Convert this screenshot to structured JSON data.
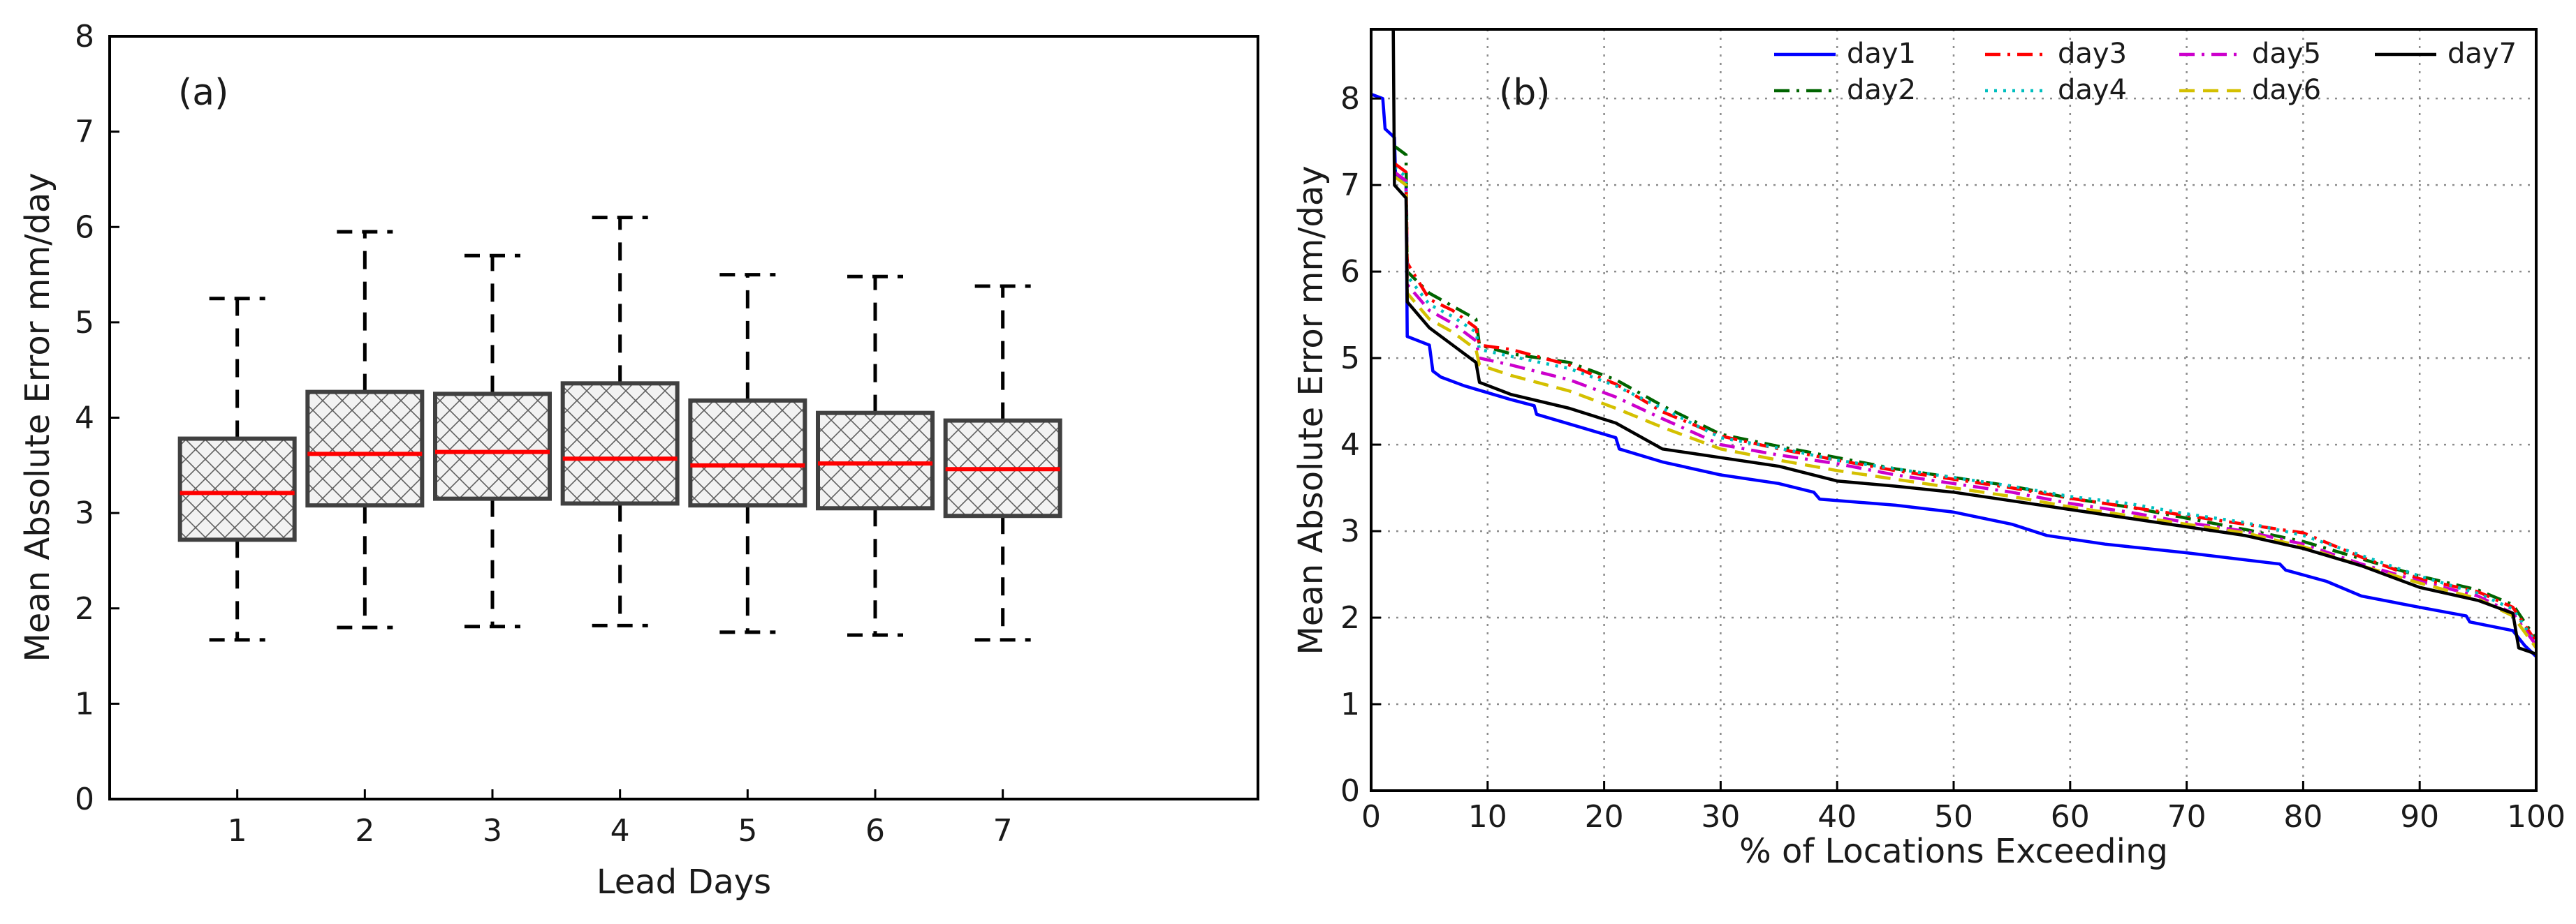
{
  "chart_data": [
    {
      "panel": "(a)",
      "type": "boxplot",
      "xlabel": "Lead Days",
      "ylabel": "Mean Absolute Error mm/day",
      "ylim": [
        0,
        8
      ],
      "xlim": [
        0,
        9
      ],
      "yticks": [
        "0",
        "1",
        "2",
        "3",
        "4",
        "5",
        "6",
        "7",
        "8"
      ],
      "categories": [
        "1",
        "2",
        "3",
        "4",
        "5",
        "6",
        "7"
      ],
      "boxes": [
        {
          "lead": "1",
          "whisker_low": 1.67,
          "q1": 2.72,
          "median": 3.21,
          "q3": 3.78,
          "whisker_high": 5.25
        },
        {
          "lead": "2",
          "whisker_low": 1.8,
          "q1": 3.08,
          "median": 3.62,
          "q3": 4.27,
          "whisker_high": 5.95
        },
        {
          "lead": "3",
          "whisker_low": 1.81,
          "q1": 3.15,
          "median": 3.64,
          "q3": 4.25,
          "whisker_high": 5.7
        },
        {
          "lead": "4",
          "whisker_low": 1.82,
          "q1": 3.1,
          "median": 3.57,
          "q3": 4.36,
          "whisker_high": 6.1
        },
        {
          "lead": "5",
          "whisker_low": 1.75,
          "q1": 3.08,
          "median": 3.5,
          "q3": 4.18,
          "whisker_high": 5.5
        },
        {
          "lead": "6",
          "whisker_low": 1.72,
          "q1": 3.05,
          "median": 3.52,
          "q3": 4.05,
          "whisker_high": 5.48
        },
        {
          "lead": "7",
          "whisker_low": 1.67,
          "q1": 2.97,
          "median": 3.46,
          "q3": 3.97,
          "whisker_high": 5.38
        }
      ],
      "colors": {
        "box_edge": "#404040",
        "median": "#ff0000",
        "whisker": "#000000"
      }
    },
    {
      "panel": "(b)",
      "type": "line",
      "xlabel": "% of Locations Exceeding",
      "ylabel": "Mean Absolute Error mm/day",
      "xlim": [
        0,
        100
      ],
      "ylim": [
        0,
        8.8
      ],
      "xticks": [
        "0",
        "10",
        "20",
        "30",
        "40",
        "50",
        "60",
        "70",
        "80",
        "90",
        "100"
      ],
      "yticks": [
        "0",
        "1",
        "2",
        "3",
        "4",
        "5",
        "6",
        "7",
        "8"
      ],
      "grid": true,
      "legend_position": "top-right",
      "series": [
        {
          "name": "day1",
          "color": "#0000ff",
          "style": "solid",
          "points": [
            [
              0,
              8.05
            ],
            [
              1,
              8.0
            ],
            [
              1.2,
              7.65
            ],
            [
              2,
              7.55
            ],
            [
              2.1,
              7.1
            ],
            [
              3,
              7.0
            ],
            [
              3.1,
              5.25
            ],
            [
              5,
              5.15
            ],
            [
              5.3,
              4.85
            ],
            [
              6,
              4.78
            ],
            [
              8,
              4.68
            ],
            [
              10,
              4.6
            ],
            [
              12,
              4.52
            ],
            [
              14,
              4.45
            ],
            [
              14.2,
              4.35
            ],
            [
              18,
              4.2
            ],
            [
              21,
              4.08
            ],
            [
              21.3,
              3.95
            ],
            [
              25,
              3.8
            ],
            [
              30,
              3.65
            ],
            [
              35,
              3.55
            ],
            [
              38,
              3.45
            ],
            [
              38.5,
              3.37
            ],
            [
              45,
              3.3
            ],
            [
              50,
              3.22
            ],
            [
              55,
              3.08
            ],
            [
              58,
              2.95
            ],
            [
              63,
              2.85
            ],
            [
              70,
              2.75
            ],
            [
              78,
              2.62
            ],
            [
              78.5,
              2.55
            ],
            [
              82,
              2.42
            ],
            [
              85,
              2.25
            ],
            [
              90,
              2.12
            ],
            [
              94,
              2.02
            ],
            [
              94.3,
              1.95
            ],
            [
              98,
              1.85
            ],
            [
              99,
              1.68
            ],
            [
              100,
              1.55
            ]
          ]
        },
        {
          "name": "day2",
          "color": "#006400",
          "style": "dashdot",
          "points": [
            [
              2,
              7.45
            ],
            [
              3,
              7.35
            ],
            [
              3.1,
              6.0
            ],
            [
              5,
              5.75
            ],
            [
              7,
              5.6
            ],
            [
              9,
              5.45
            ],
            [
              9.3,
              5.15
            ],
            [
              12,
              5.05
            ],
            [
              17,
              4.95
            ],
            [
              21,
              4.75
            ],
            [
              25,
              4.45
            ],
            [
              30,
              4.12
            ],
            [
              35,
              3.98
            ],
            [
              40,
              3.85
            ],
            [
              45,
              3.72
            ],
            [
              50,
              3.62
            ],
            [
              55,
              3.52
            ],
            [
              60,
              3.38
            ],
            [
              65,
              3.28
            ],
            [
              70,
              3.15
            ],
            [
              75,
              3.02
            ],
            [
              80,
              2.88
            ],
            [
              85,
              2.68
            ],
            [
              90,
              2.48
            ],
            [
              95,
              2.32
            ],
            [
              98,
              2.15
            ],
            [
              100,
              1.75
            ]
          ]
        },
        {
          "name": "day3",
          "color": "#ff0000",
          "style": "dashdot",
          "points": [
            [
              2,
              7.25
            ],
            [
              3,
              7.15
            ],
            [
              3.1,
              6.1
            ],
            [
              5,
              5.68
            ],
            [
              7,
              5.55
            ],
            [
              9,
              5.35
            ],
            [
              9.3,
              5.15
            ],
            [
              12,
              5.1
            ],
            [
              17,
              4.92
            ],
            [
              21,
              4.7
            ],
            [
              25,
              4.38
            ],
            [
              30,
              4.1
            ],
            [
              35,
              3.95
            ],
            [
              40,
              3.82
            ],
            [
              45,
              3.7
            ],
            [
              50,
              3.6
            ],
            [
              55,
              3.5
            ],
            [
              60,
              3.38
            ],
            [
              65,
              3.28
            ],
            [
              70,
              3.18
            ],
            [
              75,
              3.08
            ],
            [
              80,
              2.98
            ],
            [
              85,
              2.7
            ],
            [
              90,
              2.45
            ],
            [
              95,
              2.3
            ],
            [
              98,
              2.12
            ],
            [
              100,
              1.72
            ]
          ]
        },
        {
          "name": "day4",
          "color": "#00bfbf",
          "style": "dotted",
          "points": [
            [
              2,
              7.2
            ],
            [
              3,
              7.1
            ],
            [
              3.1,
              5.95
            ],
            [
              5,
              5.62
            ],
            [
              7,
              5.48
            ],
            [
              9,
              5.3
            ],
            [
              9.3,
              5.1
            ],
            [
              12,
              5.02
            ],
            [
              17,
              4.88
            ],
            [
              21,
              4.68
            ],
            [
              25,
              4.42
            ],
            [
              30,
              4.08
            ],
            [
              35,
              3.96
            ],
            [
              40,
              3.82
            ],
            [
              45,
              3.72
            ],
            [
              50,
              3.62
            ],
            [
              55,
              3.52
            ],
            [
              60,
              3.4
            ],
            [
              65,
              3.32
            ],
            [
              70,
              3.2
            ],
            [
              75,
              3.1
            ],
            [
              80,
              2.95
            ],
            [
              85,
              2.72
            ],
            [
              90,
              2.48
            ],
            [
              95,
              2.28
            ],
            [
              98,
              2.1
            ],
            [
              100,
              1.7
            ]
          ]
        },
        {
          "name": "day5",
          "color": "#cc00cc",
          "style": "dashdot",
          "points": [
            [
              2,
              7.15
            ],
            [
              3,
              7.05
            ],
            [
              3.1,
              5.85
            ],
            [
              5,
              5.55
            ],
            [
              7,
              5.4
            ],
            [
              9,
              5.2
            ],
            [
              9.3,
              5.0
            ],
            [
              12,
              4.92
            ],
            [
              17,
              4.75
            ],
            [
              21,
              4.55
            ],
            [
              25,
              4.3
            ],
            [
              30,
              4.0
            ],
            [
              35,
              3.88
            ],
            [
              40,
              3.78
            ],
            [
              45,
              3.65
            ],
            [
              50,
              3.55
            ],
            [
              55,
              3.45
            ],
            [
              60,
              3.32
            ],
            [
              65,
              3.22
            ],
            [
              70,
              3.1
            ],
            [
              75,
              3.0
            ],
            [
              80,
              2.85
            ],
            [
              85,
              2.62
            ],
            [
              90,
              2.42
            ],
            [
              95,
              2.25
            ],
            [
              98,
              2.05
            ],
            [
              100,
              1.68
            ]
          ]
        },
        {
          "name": "day6",
          "color": "#d4c000",
          "style": "dashed",
          "points": [
            [
              2,
              7.1
            ],
            [
              3,
              7.0
            ],
            [
              3.1,
              5.75
            ],
            [
              5,
              5.45
            ],
            [
              7,
              5.3
            ],
            [
              9,
              5.1
            ],
            [
              9.3,
              4.92
            ],
            [
              12,
              4.8
            ],
            [
              17,
              4.62
            ],
            [
              21,
              4.42
            ],
            [
              25,
              4.2
            ],
            [
              30,
              3.95
            ],
            [
              35,
              3.82
            ],
            [
              40,
              3.7
            ],
            [
              45,
              3.6
            ],
            [
              50,
              3.5
            ],
            [
              55,
              3.4
            ],
            [
              60,
              3.28
            ],
            [
              65,
              3.18
            ],
            [
              70,
              3.08
            ],
            [
              75,
              2.98
            ],
            [
              80,
              2.82
            ],
            [
              85,
              2.6
            ],
            [
              90,
              2.4
            ],
            [
              95,
              2.22
            ],
            [
              98,
              2.02
            ],
            [
              100,
              1.65
            ]
          ]
        },
        {
          "name": "day7",
          "color": "#000000",
          "style": "solid",
          "points": [
            [
              1.9,
              8.8
            ],
            [
              2,
              7.0
            ],
            [
              3,
              6.85
            ],
            [
              3.1,
              5.65
            ],
            [
              5,
              5.35
            ],
            [
              7,
              5.15
            ],
            [
              9,
              4.95
            ],
            [
              9.3,
              4.72
            ],
            [
              12,
              4.58
            ],
            [
              17,
              4.42
            ],
            [
              21,
              4.25
            ],
            [
              25,
              3.95
            ],
            [
              30,
              3.85
            ],
            [
              35,
              3.75
            ],
            [
              40,
              3.58
            ],
            [
              45,
              3.52
            ],
            [
              50,
              3.45
            ],
            [
              55,
              3.35
            ],
            [
              60,
              3.25
            ],
            [
              65,
              3.15
            ],
            [
              70,
              3.05
            ],
            [
              75,
              2.95
            ],
            [
              80,
              2.8
            ],
            [
              85,
              2.6
            ],
            [
              90,
              2.35
            ],
            [
              95,
              2.2
            ],
            [
              98,
              2.05
            ],
            [
              98.5,
              1.65
            ],
            [
              100,
              1.58
            ]
          ]
        }
      ]
    }
  ]
}
